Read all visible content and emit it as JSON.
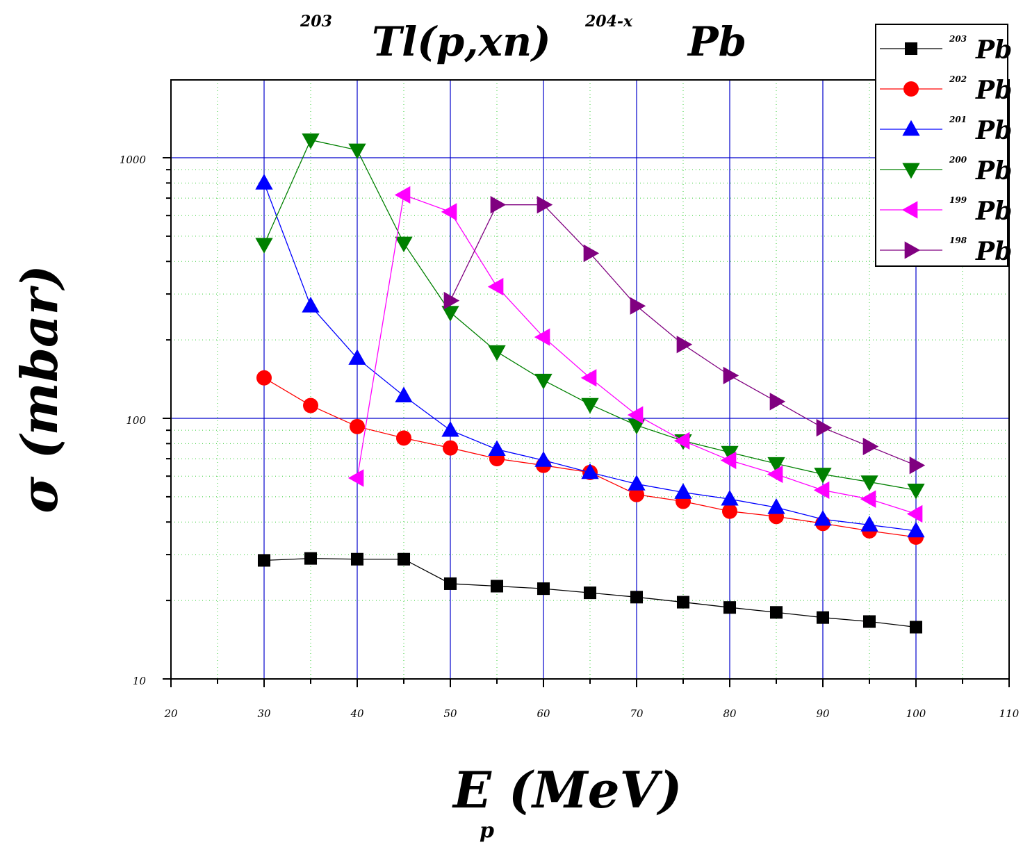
{
  "chart_data": {
    "type": "line",
    "title": {
      "sup1": "203",
      "main1": "Tl(p,xn)",
      "sup2": "204-x",
      "main2": "Pb"
    },
    "xlabel": {
      "main": "E (MeV)",
      "sub": "p"
    },
    "ylabel": "σ (mbar)",
    "xlim": [
      20,
      110
    ],
    "ylim": [
      10,
      2000
    ],
    "yscale": "log",
    "x_ticks": [
      20,
      30,
      40,
      50,
      60,
      70,
      80,
      90,
      100,
      110
    ],
    "x_tick_labels": [
      "20",
      "30",
      "40",
      "50",
      "60",
      "70",
      "80",
      "90",
      "100",
      "110"
    ],
    "y_ticks": [
      10,
      100,
      1000
    ],
    "y_tick_labels": [
      "10",
      "100",
      "1000"
    ],
    "grid": true,
    "legend_position": "top-right",
    "series": [
      {
        "name": "Pb",
        "mass": "203",
        "color": "#000000",
        "marker": "square",
        "x": [
          30,
          35,
          40,
          45,
          50,
          55,
          60,
          65,
          70,
          75,
          80,
          85,
          90,
          95,
          100
        ],
        "y": [
          28.5,
          29,
          28.8,
          28.8,
          23.2,
          22.7,
          22.2,
          21.4,
          20.6,
          19.7,
          18.8,
          18.0,
          17.2,
          16.6,
          15.8
        ]
      },
      {
        "name": "Pb",
        "mass": "202",
        "color": "#ff0000",
        "marker": "circle",
        "x": [
          30,
          35,
          40,
          45,
          50,
          55,
          60,
          65,
          70,
          75,
          80,
          85,
          90,
          95,
          100
        ],
        "y": [
          143,
          112,
          93,
          84,
          77,
          70,
          66,
          62,
          51,
          48,
          44,
          42,
          39.5,
          37,
          35
        ]
      },
      {
        "name": "Pb",
        "mass": "201",
        "color": "#0000ff",
        "marker": "triangle-up",
        "x": [
          30,
          35,
          40,
          45,
          50,
          55,
          60,
          65,
          70,
          75,
          80,
          85,
          90,
          95,
          100
        ],
        "y": [
          800,
          270,
          170,
          122,
          90,
          76,
          69,
          62,
          56,
          52,
          49,
          45.5,
          41,
          39,
          37
        ]
      },
      {
        "name": "Pb",
        "mass": "200",
        "color": "#008000",
        "marker": "triangle-down",
        "x": [
          30,
          35,
          40,
          45,
          50,
          55,
          60,
          65,
          70,
          75,
          80,
          85,
          90,
          95,
          100
        ],
        "y": [
          465,
          1170,
          1070,
          470,
          255,
          180,
          140,
          113,
          94,
          82,
          74,
          67,
          61,
          57,
          53
        ]
      },
      {
        "name": "Pb",
        "mass": "199",
        "color": "#ff00ff",
        "marker": "triangle-left",
        "x": [
          40,
          45,
          50,
          55,
          60,
          65,
          70,
          75,
          80,
          85,
          90,
          95,
          100
        ],
        "y": [
          59,
          720,
          620,
          320,
          205,
          143,
          103,
          82,
          69,
          61,
          53,
          49,
          43
        ]
      },
      {
        "name": "Pb",
        "mass": "198",
        "color": "#800080",
        "marker": "triangle-right",
        "x": [
          50,
          55,
          60,
          65,
          70,
          75,
          80,
          85,
          90,
          95,
          100
        ],
        "y": [
          283,
          660,
          660,
          430,
          270,
          192,
          146,
          116,
          92,
          78,
          66
        ]
      }
    ]
  }
}
